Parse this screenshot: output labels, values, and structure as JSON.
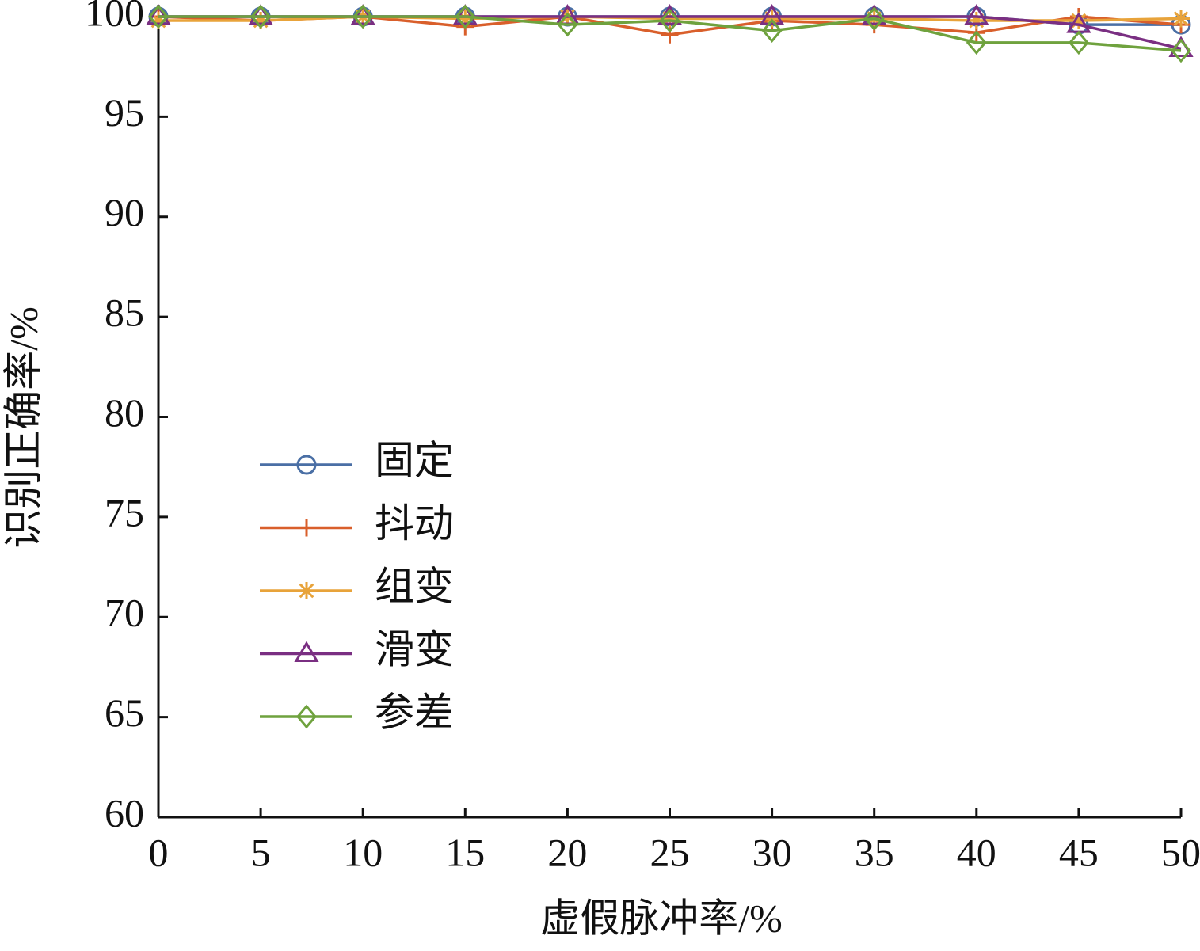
{
  "chart_data": {
    "type": "line",
    "x_label": "虚假脉冲率/%",
    "y_label": "识别正确率/%",
    "x": [
      0,
      5,
      10,
      15,
      20,
      25,
      30,
      35,
      40,
      45,
      50
    ],
    "xlim": [
      0,
      50
    ],
    "xticks": [
      0,
      5,
      10,
      15,
      20,
      25,
      30,
      35,
      40,
      45,
      50
    ],
    "ylim": [
      60,
      100
    ],
    "yticks": [
      60,
      65,
      70,
      75,
      80,
      85,
      90,
      95,
      100
    ],
    "grid": false,
    "legend": "left",
    "series": [
      {
        "name": "固定",
        "color": "#4a6fa5",
        "marker": "circle",
        "values": [
          100,
          100,
          100,
          100,
          100,
          100,
          100,
          100,
          100,
          99.6,
          99.6
        ]
      },
      {
        "name": "抖动",
        "color": "#d95f2b",
        "marker": "plus",
        "values": [
          100,
          99.8,
          100,
          99.5,
          100,
          99.1,
          99.8,
          99.6,
          99.2,
          100,
          99.6
        ]
      },
      {
        "name": "组变",
        "color": "#e8a33a",
        "marker": "star",
        "values": [
          99.8,
          99.8,
          100,
          99.9,
          100,
          99.9,
          99.9,
          99.9,
          99.8,
          99.8,
          99.9
        ]
      },
      {
        "name": "滑变",
        "color": "#7a2f82",
        "marker": "triangle",
        "values": [
          100,
          100,
          100,
          100,
          100,
          100,
          100,
          100,
          100,
          99.6,
          98.4
        ]
      },
      {
        "name": "参差",
        "color": "#6fa23e",
        "marker": "diamond",
        "values": [
          100,
          100,
          100,
          100,
          99.6,
          99.8,
          99.3,
          99.9,
          98.7,
          98.7,
          98.3
        ]
      }
    ]
  }
}
